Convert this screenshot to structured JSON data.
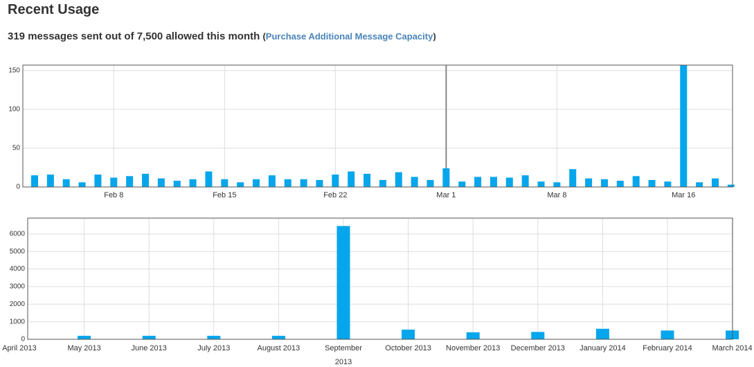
{
  "header": {
    "title": "Recent Usage",
    "usage_text": "319 messages sent out of 7,500 allowed this month",
    "link_open": "(",
    "link_text": "Purchase Additional Message Capacity",
    "link_close": ")"
  },
  "chart_data": [
    {
      "type": "bar",
      "color": "#06a6ec",
      "grid": true,
      "categories": [
        null,
        null,
        null,
        null,
        null,
        "Feb 8",
        null,
        null,
        null,
        null,
        null,
        null,
        "Feb 15",
        null,
        null,
        null,
        null,
        null,
        null,
        "Feb 22",
        null,
        null,
        null,
        null,
        null,
        null,
        "Mar 1",
        null,
        null,
        null,
        null,
        null,
        null,
        "Mar 8",
        null,
        null,
        null,
        null,
        null,
        null,
        null,
        "Mar 16",
        null,
        null,
        null
      ],
      "values": [
        15,
        16,
        10,
        6,
        16,
        12,
        14,
        17,
        11,
        8,
        10,
        20,
        10,
        6,
        10,
        15,
        10,
        10,
        9,
        16,
        20,
        17,
        9,
        19,
        13,
        9,
        24,
        7,
        13,
        13,
        12,
        15,
        7,
        6,
        23,
        11,
        10,
        8,
        14,
        9,
        7,
        157,
        6,
        11,
        3
      ],
      "ylim": [
        0,
        157
      ],
      "yticks": [
        0,
        50,
        100,
        150
      ]
    },
    {
      "type": "bar",
      "color": "#06a6ec",
      "grid": true,
      "categories": [
        "April 2013",
        "May 2013",
        "June 2013",
        "July 2013",
        "August 2013",
        "September",
        "October 2013",
        "November 2013",
        "December 2013",
        "January 2014",
        "February 2014",
        "March 2014"
      ],
      "annotation": "2013",
      "values": [
        0,
        200,
        200,
        200,
        200,
        6450,
        550,
        400,
        420,
        600,
        500,
        500
      ],
      "ylim": [
        0,
        6900
      ],
      "yticks": [
        0,
        1000,
        2000,
        3000,
        4000,
        5000,
        6000
      ]
    }
  ]
}
